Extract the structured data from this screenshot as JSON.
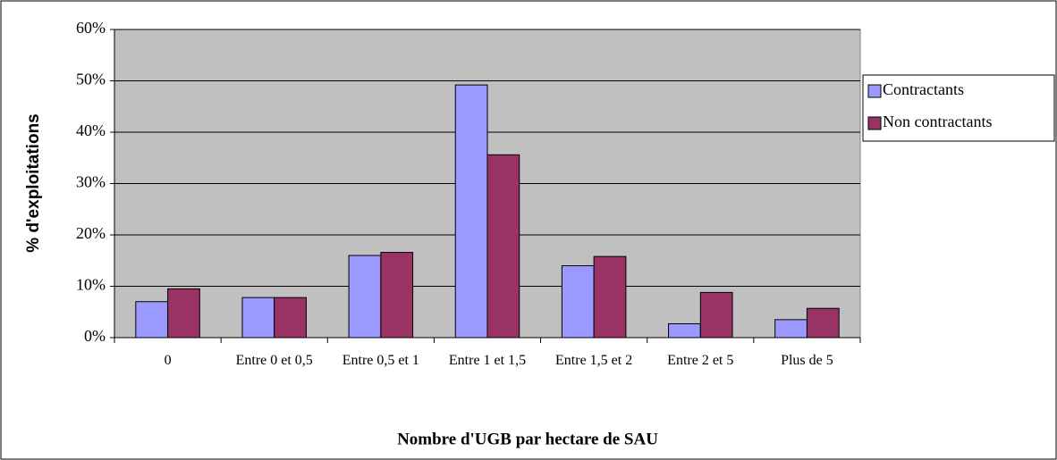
{
  "chart_data": {
    "type": "bar",
    "x_label": "Nombre d'UGB par hectare de SAU",
    "y_label": "% d'exploitations",
    "categories": [
      "0",
      "Entre 0 et 0,5",
      "Entre 0,5 et 1",
      "Entre 1 et 1,5",
      "Entre 1,5 et 2",
      "Entre 2 et 5",
      "Plus de 5"
    ],
    "series": [
      {
        "name": "Contractants",
        "color": "#9999ff",
        "values": [
          7,
          7.8,
          16,
          49.2,
          14,
          2.7,
          3.5
        ]
      },
      {
        "name": "Non contractants",
        "color": "#993366",
        "values": [
          9.5,
          7.8,
          16.6,
          35.6,
          15.8,
          8.8,
          5.7
        ]
      }
    ],
    "ylim": [
      0,
      60
    ],
    "yticks": [
      {
        "value": 0,
        "label": "0%"
      },
      {
        "value": 10,
        "label": "10%"
      },
      {
        "value": 20,
        "label": "20%"
      },
      {
        "value": 30,
        "label": "30%"
      },
      {
        "value": 40,
        "label": "40%"
      },
      {
        "value": 50,
        "label": "50%"
      },
      {
        "value": 60,
        "label": "60%"
      }
    ],
    "grid": true,
    "legend": "right"
  }
}
